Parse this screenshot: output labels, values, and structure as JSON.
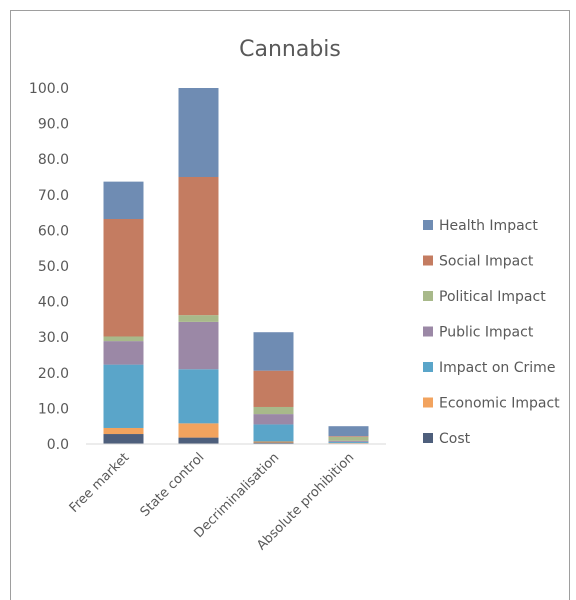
{
  "chart_data": {
    "type": "bar",
    "stacked": true,
    "title": "Cannabis",
    "xlabel": "",
    "ylabel": "",
    "ylim": [
      0,
      100
    ],
    "yticks": [
      "0.0",
      "10.0",
      "20.0",
      "30.0",
      "40.0",
      "50.0",
      "60.0",
      "70.0",
      "80.0",
      "90.0",
      "100.0"
    ],
    "categories": [
      "Free market",
      "State control",
      "Decriminalisation",
      "Absolute prohibition"
    ],
    "series": [
      {
        "name": "Cost",
        "color": "#4e5f7c",
        "values": [
          2.8,
          1.8,
          0.4,
          0.2
        ]
      },
      {
        "name": "Economic Impact",
        "color": "#f2a35e",
        "values": [
          1.7,
          4.0,
          0.3,
          0.1
        ]
      },
      {
        "name": "Impact on Crime",
        "color": "#5aa5c9",
        "values": [
          17.8,
          15.2,
          4.8,
          0.3
        ]
      },
      {
        "name": "Public Impact",
        "color": "#9b88a6",
        "values": [
          6.6,
          13.3,
          2.9,
          0.3
        ]
      },
      {
        "name": "Political Impact",
        "color": "#a8b98a",
        "values": [
          1.3,
          1.9,
          2.0,
          1.1
        ]
      },
      {
        "name": "Social Impact",
        "color": "#c47c61",
        "values": [
          33.0,
          38.8,
          10.2,
          0.2
        ]
      },
      {
        "name": "Health Impact",
        "color": "#6f8cb3",
        "values": [
          10.5,
          25.0,
          10.8,
          2.8
        ]
      }
    ],
    "legend_position": "right",
    "grid": false
  }
}
